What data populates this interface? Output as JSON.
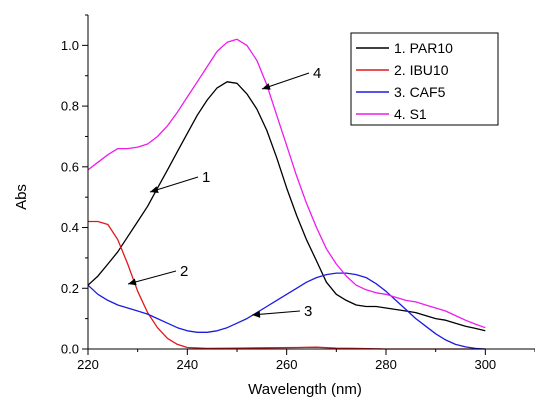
{
  "chart_data": {
    "type": "line",
    "xlabel": "Wavelength (nm)",
    "ylabel": "Abs",
    "xlim": [
      220,
      310
    ],
    "ylim": [
      0,
      1.1
    ],
    "x_ticks": [
      "220",
      "240",
      "260",
      "280",
      "300"
    ],
    "y_ticks": [
      "0.0",
      "0.2",
      "0.4",
      "0.6",
      "0.8",
      "1.0"
    ],
    "legend_position": "top-right",
    "series": [
      {
        "name": "1. PAR10",
        "color": "#000000",
        "points": [
          [
            220,
            0.21
          ],
          [
            222,
            0.24
          ],
          [
            224,
            0.28
          ],
          [
            226,
            0.32
          ],
          [
            228,
            0.37
          ],
          [
            230,
            0.42
          ],
          [
            232,
            0.47
          ],
          [
            234,
            0.53
          ],
          [
            236,
            0.59
          ],
          [
            238,
            0.65
          ],
          [
            240,
            0.71
          ],
          [
            242,
            0.77
          ],
          [
            244,
            0.82
          ],
          [
            246,
            0.86
          ],
          [
            248,
            0.88
          ],
          [
            250,
            0.875
          ],
          [
            252,
            0.84
          ],
          [
            254,
            0.79
          ],
          [
            256,
            0.72
          ],
          [
            258,
            0.63
          ],
          [
            260,
            0.53
          ],
          [
            262,
            0.44
          ],
          [
            264,
            0.36
          ],
          [
            266,
            0.29
          ],
          [
            268,
            0.22
          ],
          [
            270,
            0.18
          ],
          [
            272,
            0.16
          ],
          [
            274,
            0.145
          ],
          [
            276,
            0.14
          ],
          [
            278,
            0.14
          ],
          [
            280,
            0.135
          ],
          [
            282,
            0.13
          ],
          [
            284,
            0.125
          ],
          [
            286,
            0.12
          ],
          [
            288,
            0.11
          ],
          [
            290,
            0.1
          ],
          [
            292,
            0.095
          ],
          [
            294,
            0.085
          ],
          [
            296,
            0.075
          ],
          [
            298,
            0.068
          ],
          [
            300,
            0.06
          ]
        ]
      },
      {
        "name": "2. IBU10",
        "color": "#e0181b",
        "points": [
          [
            220,
            0.42
          ],
          [
            222,
            0.42
          ],
          [
            224,
            0.41
          ],
          [
            226,
            0.36
          ],
          [
            228,
            0.28
          ],
          [
            230,
            0.19
          ],
          [
            232,
            0.12
          ],
          [
            234,
            0.07
          ],
          [
            236,
            0.035
          ],
          [
            238,
            0.015
          ],
          [
            240,
            0.005
          ],
          [
            244,
            0.002
          ],
          [
            250,
            0.003
          ],
          [
            256,
            0.004
          ],
          [
            262,
            0.005
          ],
          [
            266,
            0.006
          ],
          [
            270,
            0.003
          ],
          [
            274,
            0.002
          ],
          [
            280,
            0.0
          ],
          [
            290,
            0.0
          ],
          [
            300,
            0.0
          ]
        ]
      },
      {
        "name": "3. CAF5",
        "color": "#1c1ce0",
        "points": [
          [
            220,
            0.21
          ],
          [
            222,
            0.18
          ],
          [
            224,
            0.16
          ],
          [
            226,
            0.145
          ],
          [
            228,
            0.135
          ],
          [
            230,
            0.125
          ],
          [
            232,
            0.115
          ],
          [
            234,
            0.1
          ],
          [
            236,
            0.085
          ],
          [
            238,
            0.07
          ],
          [
            240,
            0.06
          ],
          [
            242,
            0.055
          ],
          [
            244,
            0.055
          ],
          [
            246,
            0.06
          ],
          [
            248,
            0.07
          ],
          [
            250,
            0.085
          ],
          [
            252,
            0.1
          ],
          [
            254,
            0.12
          ],
          [
            256,
            0.14
          ],
          [
            258,
            0.16
          ],
          [
            260,
            0.18
          ],
          [
            262,
            0.2
          ],
          [
            264,
            0.22
          ],
          [
            266,
            0.235
          ],
          [
            268,
            0.245
          ],
          [
            270,
            0.25
          ],
          [
            272,
            0.25
          ],
          [
            274,
            0.245
          ],
          [
            276,
            0.235
          ],
          [
            278,
            0.215
          ],
          [
            280,
            0.19
          ],
          [
            282,
            0.16
          ],
          [
            284,
            0.13
          ],
          [
            286,
            0.1
          ],
          [
            288,
            0.075
          ],
          [
            290,
            0.05
          ],
          [
            292,
            0.03
          ],
          [
            294,
            0.015
          ],
          [
            296,
            0.007
          ],
          [
            298,
            0.002
          ],
          [
            300,
            0.0
          ]
        ]
      },
      {
        "name": "4. S1",
        "color": "#ee1cee",
        "points": [
          [
            220,
            0.59
          ],
          [
            222,
            0.615
          ],
          [
            224,
            0.64
          ],
          [
            226,
            0.66
          ],
          [
            228,
            0.66
          ],
          [
            230,
            0.665
          ],
          [
            232,
            0.675
          ],
          [
            234,
            0.7
          ],
          [
            236,
            0.735
          ],
          [
            238,
            0.78
          ],
          [
            240,
            0.83
          ],
          [
            242,
            0.88
          ],
          [
            244,
            0.93
          ],
          [
            246,
            0.98
          ],
          [
            248,
            1.01
          ],
          [
            250,
            1.02
          ],
          [
            252,
            1.0
          ],
          [
            254,
            0.95
          ],
          [
            256,
            0.87
          ],
          [
            258,
            0.77
          ],
          [
            260,
            0.67
          ],
          [
            262,
            0.57
          ],
          [
            264,
            0.48
          ],
          [
            266,
            0.4
          ],
          [
            268,
            0.33
          ],
          [
            270,
            0.28
          ],
          [
            272,
            0.24
          ],
          [
            274,
            0.21
          ],
          [
            276,
            0.195
          ],
          [
            278,
            0.185
          ],
          [
            280,
            0.18
          ],
          [
            282,
            0.17
          ],
          [
            284,
            0.16
          ],
          [
            286,
            0.155
          ],
          [
            288,
            0.145
          ],
          [
            290,
            0.135
          ],
          [
            292,
            0.125
          ],
          [
            294,
            0.11
          ],
          [
            296,
            0.095
          ],
          [
            298,
            0.082
          ],
          [
            300,
            0.07
          ]
        ]
      }
    ],
    "annotations": [
      {
        "text": "1",
        "x": 233,
        "y": 0.5
      },
      {
        "text": "2",
        "x": 224,
        "y": 0.215
      },
      {
        "text": "3",
        "x": 253,
        "y": 0.1
      },
      {
        "text": "4",
        "x": 251,
        "y": 0.98
      }
    ]
  }
}
